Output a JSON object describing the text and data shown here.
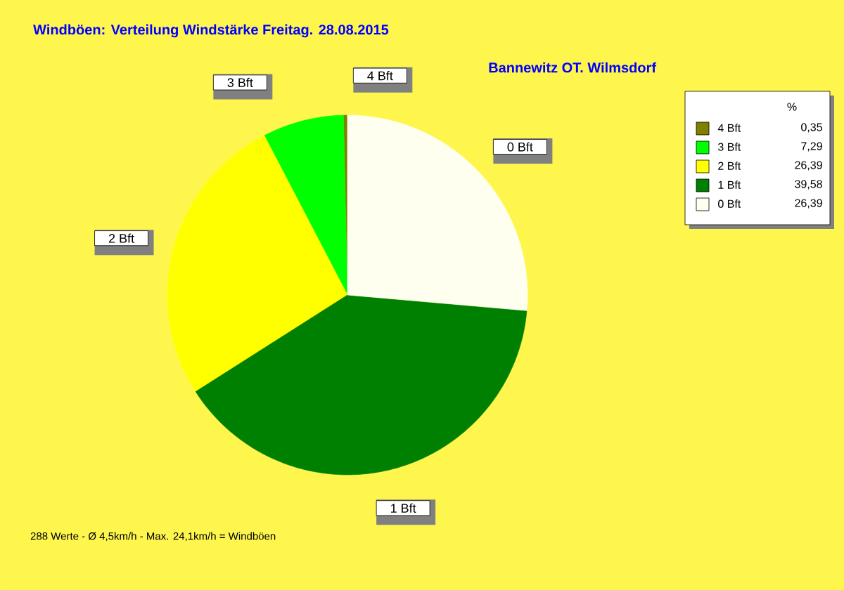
{
  "chart_data": {
    "type": "pie",
    "title": "Windböen: Verteilung Windstärke  Freitag. 28.08.2015",
    "subtitle": "Bannewitz OT. Wilmsdorf",
    "categories": [
      "4 Bft",
      "3 Bft",
      "2 Bft",
      "1 Bft",
      "0 Bft"
    ],
    "values": [
      0.35,
      7.29,
      26.39,
      39.58,
      26.39
    ],
    "value_labels": [
      "0,35",
      "7,29",
      "26,39",
      "39,58",
      "26,39"
    ],
    "colors": [
      "#808000",
      "#00ff00",
      "#ffff00",
      "#008000",
      "#fffff0"
    ],
    "legend": "top right",
    "legend_title": "%",
    "annotations": [
      "288 Werte   -   Ø 4,5km/h   -   Max. 24,1km/h = Windböen"
    ]
  }
}
